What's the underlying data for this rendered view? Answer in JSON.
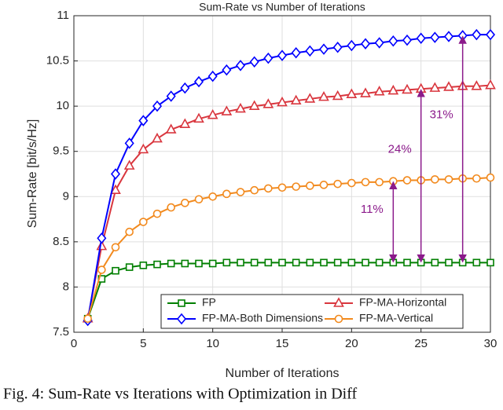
{
  "chart_data": {
    "type": "line",
    "title": "Sum-Rate vs Number of Iterations",
    "x_label": "Number of Iterations",
    "y_label": "Sum-Rate [bit/s/Hz]",
    "caption": "Fig. 4: Sum-Rate vs Iterations with Optimization in Diff",
    "x": [
      1,
      2,
      3,
      4,
      5,
      6,
      7,
      8,
      9,
      10,
      11,
      12,
      13,
      14,
      15,
      16,
      17,
      18,
      19,
      20,
      21,
      22,
      23,
      24,
      25,
      26,
      27,
      28,
      29,
      30
    ],
    "series": [
      {
        "name": "FP",
        "color": "#007f00",
        "marker": "square",
        "values": [
          7.65,
          8.09,
          8.18,
          8.22,
          8.24,
          8.25,
          8.26,
          8.26,
          8.26,
          8.26,
          8.27,
          8.27,
          8.27,
          8.27,
          8.27,
          8.27,
          8.27,
          8.27,
          8.27,
          8.27,
          8.27,
          8.27,
          8.27,
          8.27,
          8.27,
          8.27,
          8.27,
          8.27,
          8.27,
          8.27
        ]
      },
      {
        "name": "FP-MA-Horizontal",
        "color": "#d9363e",
        "marker": "triangle",
        "values": [
          7.65,
          8.45,
          9.07,
          9.34,
          9.52,
          9.64,
          9.74,
          9.8,
          9.86,
          9.9,
          9.94,
          9.97,
          10.0,
          10.02,
          10.04,
          10.06,
          10.08,
          10.1,
          10.11,
          10.13,
          10.14,
          10.16,
          10.17,
          10.18,
          10.19,
          10.2,
          10.21,
          10.22,
          10.22,
          10.23
        ]
      },
      {
        "name": "FP-MA-Both Dimensions",
        "color": "#0000ff",
        "marker": "diamond",
        "values": [
          7.63,
          8.54,
          9.25,
          9.59,
          9.84,
          10.0,
          10.11,
          10.2,
          10.27,
          10.33,
          10.4,
          10.45,
          10.49,
          10.53,
          10.56,
          10.59,
          10.61,
          10.63,
          10.65,
          10.67,
          10.69,
          10.7,
          10.72,
          10.73,
          10.75,
          10.76,
          10.77,
          10.78,
          10.79,
          10.79
        ]
      },
      {
        "name": "FP-MA-Vertical",
        "color": "#f28a1e",
        "marker": "circle",
        "values": [
          7.65,
          8.19,
          8.44,
          8.61,
          8.72,
          8.81,
          8.88,
          8.93,
          8.97,
          9.0,
          9.03,
          9.05,
          9.07,
          9.09,
          9.1,
          9.11,
          9.12,
          9.13,
          9.14,
          9.15,
          9.16,
          9.16,
          9.17,
          9.18,
          9.18,
          9.19,
          9.19,
          9.2,
          9.2,
          9.21
        ]
      }
    ],
    "annotations": [
      {
        "text": "11%",
        "x": 23
      },
      {
        "text": "24%",
        "x": 25
      },
      {
        "text": "31%",
        "x": 28
      }
    ],
    "annotation_color": "#8b1a8b",
    "xlim": [
      0,
      30
    ],
    "xticks": [
      0,
      5,
      10,
      15,
      20,
      25,
      30
    ],
    "ylim": [
      7.5,
      11
    ],
    "yticks": [
      7.5,
      8,
      8.5,
      9,
      9.5,
      10,
      10.5,
      11
    ],
    "grid": true,
    "legend": "lower center"
  }
}
